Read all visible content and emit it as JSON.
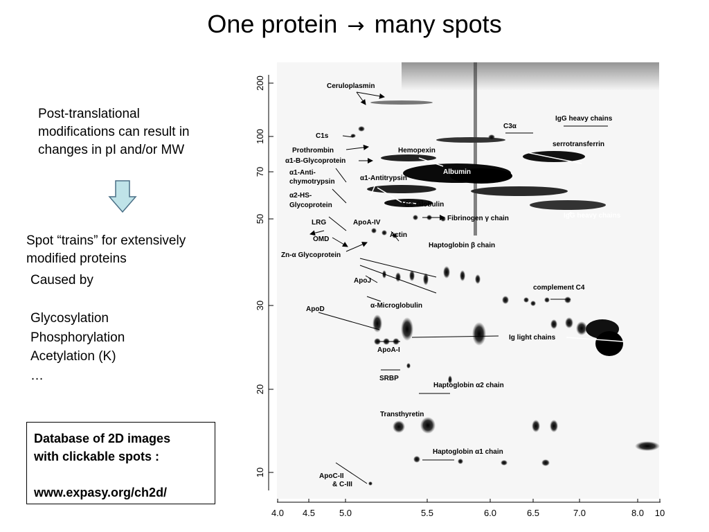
{
  "slide": {
    "title_left": "One protein",
    "title_arrow": "→",
    "title_right": "many spots",
    "ptm_text": [
      "Post-translational",
      "modifications can result in",
      "changes in pI and/or MW"
    ],
    "trains_text": [
      "Spot “trains” for extensively",
      "modified proteins"
    ],
    "caused_by": "Caused by",
    "causes": [
      "Glycosylation",
      "Phosphorylation",
      "Acetylation (K)",
      "…"
    ],
    "db_box": {
      "line1": "Database of 2D images",
      "line2": "with clickable spots :",
      "url": "www.expasy.org/ch2d/"
    }
  },
  "gel": {
    "y_axis_ticks": [
      "200",
      "100",
      "70",
      "50",
      "30",
      "20",
      "10"
    ],
    "x_axis_ticks": [
      "4.0",
      "4.5",
      "5.0",
      "5.5",
      "6.0",
      "6.5",
      "7.0",
      "8.0",
      "10"
    ],
    "labels": {
      "ceruloplasmin": "Ceruloplasmin",
      "c1s": "C1s",
      "prothrombin": "Prothrombin",
      "a1b_glyco": "α1-B-Glycoprotein",
      "a1_anti_chymo_1": "α1-Anti-",
      "a1_anti_chymo_2": "chymotrypsin",
      "a2hs_1": "α2-HS-",
      "a2hs_2": "Glycoprotein",
      "lrg": "LRG",
      "omd": "OMD",
      "zn_a_glyco": "Zn-α Glycoprotein",
      "apoa4": "ApoA-IV",
      "actin": "Actin",
      "hemopexin": "Hemopexin",
      "albumin": "Albumin",
      "a1_antitrypsin": "α1-Antitrypsin",
      "gc_globulin": "Gc-Globulin",
      "c3a": "C3α",
      "igg_heavy_top": "IgG heavy chains",
      "serotransferrin": "serrotransferrin",
      "fibrinogen": "Fibrinogen γ chain",
      "igg_heavy_mid": "IgG heavy chains",
      "haptoglobin_b": "Haptoglobin β chain",
      "apoj": "ApoJ",
      "apod": "ApoD",
      "a_microglobulin": "α-Microglobulin",
      "complement_c4": "complement C4",
      "ig_light": "Ig light chains",
      "apoa1": "ApoA-I",
      "srbp": "SRBP",
      "haptoglobin_a2": "Haptoglobin α2 chain",
      "transthyretin": "Transthyretin",
      "haptoglobin_a1": "Haptoglobin α1 chain",
      "apoc2": "ApoC-II",
      "apoc3": "& C-III"
    }
  }
}
